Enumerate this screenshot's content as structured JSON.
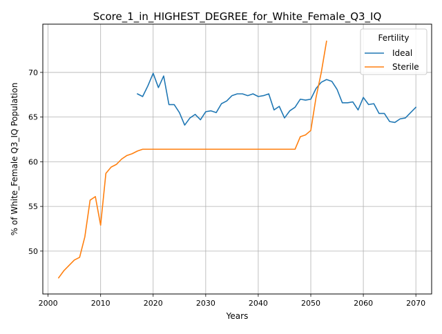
{
  "chart_data": {
    "type": "line",
    "title": "Score_1_in_HIGHEST_DEGREE_for_White_Female_Q3_IQ",
    "xlabel": "Years",
    "ylabel": "% of White_Female Q3_IQ Population",
    "xlim": [
      1999,
      2073
    ],
    "ylim": [
      45.2,
      75.4
    ],
    "xticks": [
      2000,
      2010,
      2020,
      2030,
      2040,
      2050,
      2060,
      2070
    ],
    "yticks": [
      50,
      55,
      60,
      65,
      70
    ],
    "grid": true,
    "legend": {
      "title": "Fertility",
      "placement": "top-right"
    },
    "series": [
      {
        "name": "Ideal",
        "color": "#1f77b4",
        "x": [
          2017,
          2018,
          2019,
          2020,
          2021,
          2022,
          2023,
          2024,
          2025,
          2026,
          2027,
          2028,
          2029,
          2030,
          2031,
          2032,
          2033,
          2034,
          2035,
          2036,
          2037,
          2038,
          2039,
          2040,
          2041,
          2042,
          2043,
          2044,
          2045,
          2046,
          2047,
          2048,
          2049,
          2050,
          2051,
          2052,
          2053,
          2054,
          2055,
          2056,
          2057,
          2058,
          2059,
          2060,
          2061,
          2062,
          2063,
          2064,
          2065,
          2066,
          2067,
          2068,
          2069,
          2070
        ],
        "y": [
          67.6,
          67.3,
          68.5,
          69.9,
          68.3,
          69.6,
          66.4,
          66.4,
          65.5,
          64.1,
          64.9,
          65.3,
          64.7,
          65.6,
          65.7,
          65.5,
          66.5,
          66.8,
          67.4,
          67.6,
          67.6,
          67.4,
          67.6,
          67.3,
          67.4,
          67.6,
          65.8,
          66.2,
          64.9,
          65.7,
          66.1,
          67.0,
          66.9,
          67.0,
          68.2,
          68.9,
          69.2,
          69.0,
          68.1,
          66.6,
          66.6,
          66.7,
          65.8,
          67.2,
          66.4,
          66.5,
          65.4,
          65.4,
          64.5,
          64.4,
          64.8,
          64.9,
          65.5,
          66.1
        ]
      },
      {
        "name": "Sterile",
        "color": "#ff7f0e",
        "x": [
          2002,
          2003,
          2004,
          2005,
          2006,
          2007,
          2008,
          2009,
          2010,
          2011,
          2012,
          2013,
          2014,
          2015,
          2016,
          2017,
          2018,
          2019,
          2020,
          2021,
          2022,
          2023,
          2024,
          2025,
          2026,
          2027,
          2028,
          2029,
          2030,
          2031,
          2032,
          2033,
          2034,
          2035,
          2036,
          2037,
          2038,
          2039,
          2040,
          2041,
          2042,
          2043,
          2044,
          2045,
          2046,
          2047,
          2048,
          2049,
          2050,
          2051,
          2052,
          2053
        ],
        "y": [
          47.0,
          47.8,
          48.4,
          49.0,
          49.3,
          51.6,
          55.7,
          56.1,
          52.9,
          58.7,
          59.4,
          59.7,
          60.3,
          60.7,
          60.9,
          61.2,
          61.4,
          61.4,
          61.4,
          61.4,
          61.4,
          61.4,
          61.4,
          61.4,
          61.4,
          61.4,
          61.4,
          61.4,
          61.4,
          61.4,
          61.4,
          61.4,
          61.4,
          61.4,
          61.4,
          61.4,
          61.4,
          61.4,
          61.4,
          61.4,
          61.4,
          61.4,
          61.4,
          61.4,
          61.4,
          61.4,
          62.8,
          63.0,
          63.5,
          67.2,
          70.0,
          73.5
        ]
      }
    ]
  }
}
